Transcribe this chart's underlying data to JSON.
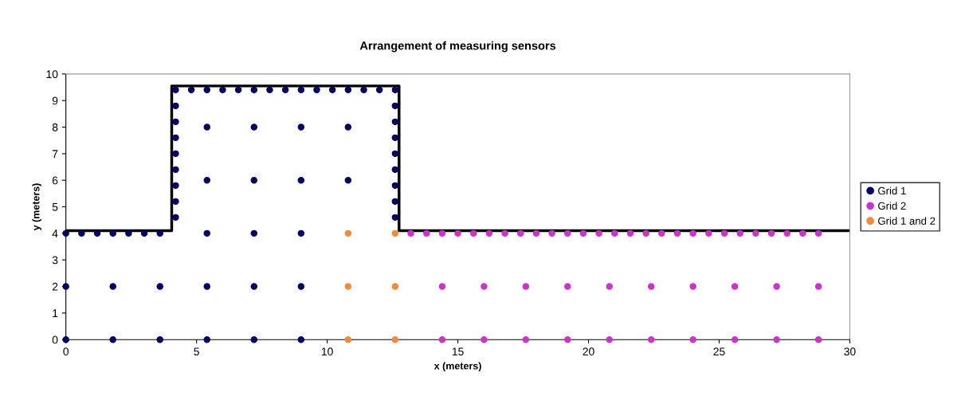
{
  "chart_data": {
    "type": "scatter",
    "title": "Arrangement of measuring sensors",
    "xlabel": "x (meters)",
    "ylabel": "y (meters)",
    "xlim": [
      0,
      30
    ],
    "xticks": [
      0,
      5,
      10,
      15,
      20,
      25,
      30
    ],
    "ylim": [
      0,
      10
    ],
    "yticks": [
      0,
      1,
      2,
      3,
      4,
      5,
      6,
      7,
      8,
      9,
      10
    ],
    "grid": false,
    "legend": "right",
    "marker": "circle",
    "series": [
      {
        "type": "line",
        "color": "#000000",
        "marker": "none",
        "line_style": "solid",
        "x": [
          0,
          4.05,
          4.05,
          12.75,
          12.75,
          30
        ],
        "values": [
          4.1,
          4.1,
          9.55,
          9.55,
          4.1,
          4.1
        ]
      },
      {
        "name": "Grid 1",
        "color": "#000066",
        "x": [
          0,
          0.6,
          1.2,
          1.8,
          2.4,
          3.0,
          3.6,
          4.2,
          4.8,
          5.4,
          6.0,
          6.6,
          7.2,
          7.8,
          8.4,
          9.0,
          9.6,
          10.2,
          10.8,
          11.4,
          12.0,
          12.6,
          4.2,
          4.2,
          4.2,
          4.2,
          4.2,
          4.2,
          4.2,
          4.2,
          12.6,
          12.6,
          12.6,
          12.6,
          12.6,
          12.6,
          12.6,
          12.6,
          5.4,
          7.2,
          9.0,
          10.8,
          5.4,
          7.2,
          9.0,
          10.8,
          5.4,
          7.2,
          9.0,
          0,
          1.8,
          3.6,
          5.4,
          7.2,
          9.0,
          0,
          1.8,
          3.6,
          5.4,
          7.2,
          9.0
        ],
        "values": [
          4,
          4,
          4,
          4,
          4,
          4,
          4,
          9.4,
          9.4,
          9.4,
          9.4,
          9.4,
          9.4,
          9.4,
          9.4,
          9.4,
          9.4,
          9.4,
          9.4,
          9.4,
          9.4,
          9.4,
          8.8,
          8.2,
          7.6,
          7.0,
          6.4,
          5.8,
          5.2,
          4.6,
          8.8,
          8.2,
          7.6,
          7.0,
          6.4,
          5.8,
          5.2,
          4.6,
          8,
          8,
          8,
          8,
          6,
          6,
          6,
          6,
          4,
          4,
          4,
          2,
          2,
          2,
          2,
          2,
          2,
          0,
          0,
          0,
          0,
          0,
          0
        ]
      },
      {
        "name": "Grid 2",
        "color": "#cc33cc",
        "x": [
          13.2,
          13.8,
          14.4,
          15.0,
          15.6,
          16.2,
          16.8,
          17.4,
          18.0,
          18.6,
          19.2,
          19.8,
          20.4,
          21.0,
          21.6,
          22.2,
          22.8,
          23.4,
          24.0,
          24.6,
          25.2,
          25.8,
          26.4,
          27.0,
          27.6,
          28.2,
          28.8,
          14.4,
          16.0,
          17.6,
          19.2,
          20.8,
          22.4,
          24.0,
          25.6,
          27.2,
          28.8,
          14.4,
          16.0,
          17.6,
          19.2,
          20.8,
          22.4,
          24.0,
          25.6,
          27.2,
          28.8
        ],
        "values": [
          4,
          4,
          4,
          4,
          4,
          4,
          4,
          4,
          4,
          4,
          4,
          4,
          4,
          4,
          4,
          4,
          4,
          4,
          4,
          4,
          4,
          4,
          4,
          4,
          4,
          4,
          4,
          2,
          2,
          2,
          2,
          2,
          2,
          2,
          2,
          2,
          2,
          0,
          0,
          0,
          0,
          0,
          0,
          0,
          0,
          0,
          0
        ]
      },
      {
        "name": "Grid 1 and 2",
        "color": "#f08c38",
        "x": [
          10.8,
          12.6,
          10.8,
          12.6,
          10.8,
          12.6
        ],
        "values": [
          4,
          4,
          2,
          2,
          0,
          0
        ]
      }
    ]
  }
}
